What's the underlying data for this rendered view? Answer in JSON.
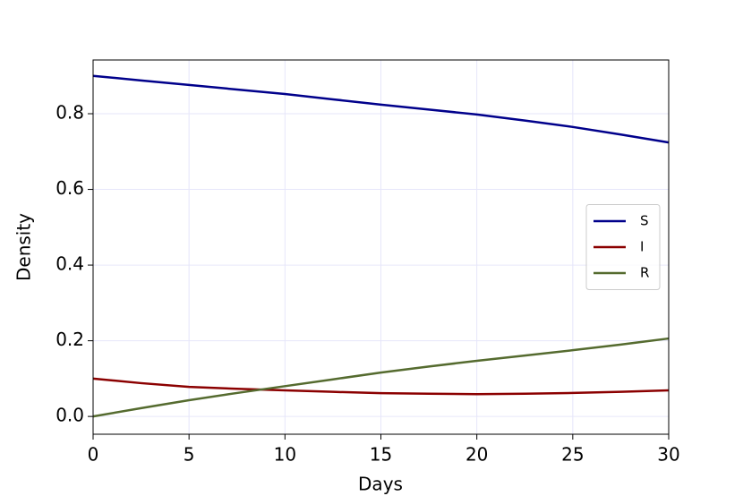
{
  "chart_data": {
    "type": "line",
    "x_label": "Days",
    "y_label": "Density",
    "x": [
      0,
      2.5,
      5,
      7.5,
      10,
      12.5,
      15,
      17.5,
      20,
      22.5,
      25,
      27.5,
      30
    ],
    "series": [
      {
        "name": "S",
        "color": "#00008b",
        "values": [
          0.9,
          0.888,
          0.876,
          0.864,
          0.852,
          0.838,
          0.824,
          0.811,
          0.798,
          0.782,
          0.765,
          0.745,
          0.724
        ]
      },
      {
        "name": "I",
        "color": "#8b0000",
        "values": [
          0.1,
          0.088,
          0.078,
          0.073,
          0.069,
          0.065,
          0.0615,
          0.06,
          0.059,
          0.06,
          0.062,
          0.065,
          0.069
        ]
      },
      {
        "name": "R",
        "color": "#556b2f",
        "values": [
          0,
          0.022,
          0.043,
          0.062,
          0.08,
          0.098,
          0.116,
          0.132,
          0.147,
          0.161,
          0.175,
          0.19,
          0.206
        ]
      }
    ],
    "xlim": [
      0,
      30
    ],
    "xticks": [
      0,
      5,
      10,
      15,
      20,
      25,
      30
    ],
    "ylim": [
      -0.047,
      0.942
    ],
    "yticks": [
      {
        "value": 0,
        "label": "0.0"
      },
      0.2,
      0.4,
      0.6,
      0.8
    ],
    "grid": true,
    "legend": "center right"
  }
}
